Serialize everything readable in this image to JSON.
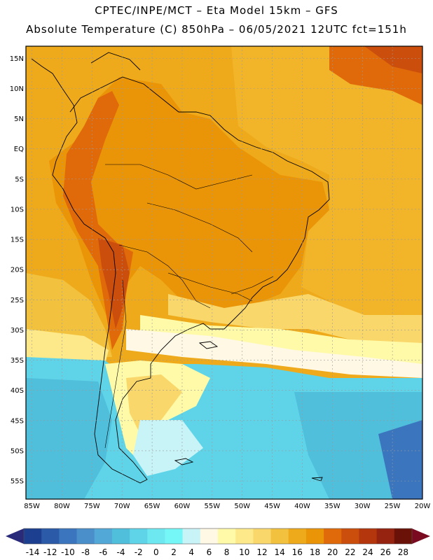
{
  "header": {
    "line1": "CPTEC/INPE/MCT –  Eta Model 15km – GFS",
    "line2": "Absolute Temperature (C) 850hPa – 06/05/2021 12UTC fct=151h"
  },
  "map": {
    "lon_range": [
      -86,
      -20
    ],
    "lat_range": [
      -58,
      17
    ],
    "lat_ticks": [
      "15N",
      "10N",
      "5N",
      "EQ",
      "5S",
      "10S",
      "15S",
      "20S",
      "25S",
      "30S",
      "35S",
      "40S",
      "45S",
      "50S",
      "55S"
    ],
    "lat_values": [
      15,
      10,
      5,
      0,
      -5,
      -10,
      -15,
      -20,
      -25,
      -30,
      -35,
      -40,
      -45,
      -50,
      -55
    ],
    "lon_ticks": [
      "85W",
      "80W",
      "75W",
      "70W",
      "65W",
      "60W",
      "55W",
      "50W",
      "45W",
      "40W",
      "35W",
      "30W",
      "25W",
      "20W"
    ],
    "lon_values": [
      -85,
      -80,
      -75,
      -70,
      -65,
      -60,
      -55,
      -50,
      -45,
      -40,
      -35,
      -30,
      -25,
      -20
    ]
  },
  "colorbar": {
    "labels": [
      "-14",
      "-12",
      "-10",
      "-8",
      "-6",
      "-4",
      "-2",
      "0",
      "2",
      "4",
      "6",
      "8",
      "10",
      "12",
      "14",
      "16",
      "18",
      "20",
      "22",
      "24",
      "26",
      "28"
    ],
    "colors": [
      "#1d3f8f",
      "#2a5aa8",
      "#3b75bd",
      "#4a8fca",
      "#52a8d6",
      "#4fbfdc",
      "#5fd4e8",
      "#6ee8f0",
      "#76f7f7",
      "#c8f4f8",
      "#fff8e4",
      "#fffaa8",
      "#fde98a",
      "#f9d76a",
      "#f2c23f",
      "#eeaa1a",
      "#ea9408",
      "#e06a0a",
      "#cc4e0c",
      "#b3360c",
      "#962210",
      "#6a1208"
    ]
  }
}
